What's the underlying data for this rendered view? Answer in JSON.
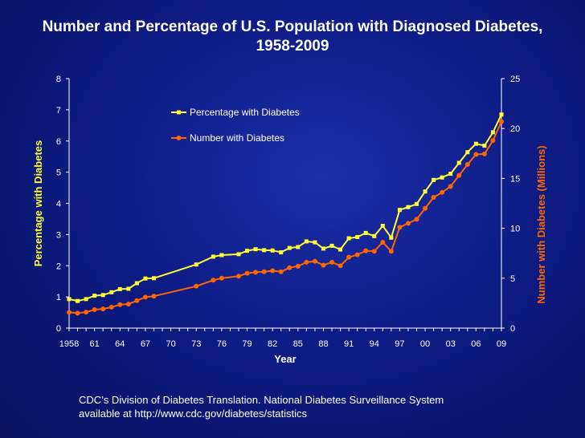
{
  "slide": {
    "title_line1": "Number and Percentage of U.S. Population with Diagnosed Diabetes,",
    "title_line2": "1958-2009",
    "source_line1": "CDC’s Division of Diabetes Translation. National Diabetes Surveillance System",
    "source_line2": "available at http://www.cdc.gov/diabetes/statistics"
  },
  "chart_data": {
    "type": "line",
    "xlabel": "Year",
    "ylabel_left": "Percentage with Diabetes",
    "ylabel_right": "Number with Diabetes (Millions)",
    "x_tick_labels": [
      "1958",
      "61",
      "64",
      "67",
      "70",
      "73",
      "76",
      "79",
      "82",
      "85",
      "88",
      "91",
      "94",
      "97",
      "00",
      "03",
      "06",
      "09"
    ],
    "x_range": [
      1958,
      2009
    ],
    "ylim_left": [
      0,
      8
    ],
    "yticks_left": [
      0,
      1,
      2,
      3,
      4,
      5,
      6,
      7,
      8
    ],
    "ylim_right": [
      0,
      25
    ],
    "yticks_right": [
      0,
      5,
      10,
      15,
      20,
      25
    ],
    "legend_position": "top-left",
    "grid": false,
    "colors": {
      "percentage": "#ffff33",
      "number": "#ff6600",
      "left_axis_label": "#ffff33",
      "right_axis_label": "#ff6600",
      "axis": "#ffffff"
    },
    "series": [
      {
        "name": "Percentage with Diabetes",
        "axis": "left",
        "marker": "square",
        "x": [
          1958,
          1959,
          1960,
          1961,
          1962,
          1963,
          1964,
          1965,
          1966,
          1967,
          1968,
          1973,
          1975,
          1976,
          1978,
          1979,
          1980,
          1981,
          1982,
          1983,
          1984,
          1985,
          1986,
          1987,
          1988,
          1989,
          1990,
          1991,
          1992,
          1993,
          1994,
          1995,
          1996,
          1997,
          1998,
          1999,
          2000,
          2001,
          2002,
          2003,
          2004,
          2005,
          2006,
          2007,
          2008,
          2009
        ],
        "values": [
          0.93,
          0.87,
          0.93,
          1.04,
          1.06,
          1.15,
          1.25,
          1.26,
          1.44,
          1.59,
          1.6,
          2.04,
          2.29,
          2.34,
          2.37,
          2.48,
          2.53,
          2.5,
          2.49,
          2.43,
          2.57,
          2.6,
          2.78,
          2.75,
          2.55,
          2.64,
          2.52,
          2.88,
          2.92,
          3.05,
          2.95,
          3.28,
          2.9,
          3.79,
          3.88,
          3.98,
          4.38,
          4.75,
          4.83,
          4.95,
          5.3,
          5.64,
          5.91,
          5.85,
          6.28,
          6.85
        ]
      },
      {
        "name": "Number with Diabetes",
        "axis": "right",
        "marker": "circle",
        "x": [
          1958,
          1959,
          1960,
          1961,
          1962,
          1963,
          1964,
          1965,
          1966,
          1967,
          1968,
          1973,
          1975,
          1976,
          1978,
          1979,
          1980,
          1981,
          1982,
          1983,
          1984,
          1985,
          1986,
          1987,
          1988,
          1989,
          1990,
          1991,
          1992,
          1993,
          1994,
          1995,
          1996,
          1997,
          1998,
          1999,
          2000,
          2001,
          2002,
          2003,
          2004,
          2005,
          2006,
          2007,
          2008,
          2009
        ],
        "values": [
          1.58,
          1.5,
          1.6,
          1.85,
          1.92,
          2.1,
          2.35,
          2.4,
          2.75,
          3.1,
          3.2,
          4.2,
          4.8,
          5.0,
          5.2,
          5.5,
          5.6,
          5.65,
          5.75,
          5.65,
          6.05,
          6.2,
          6.6,
          6.7,
          6.3,
          6.6,
          6.25,
          7.1,
          7.35,
          7.75,
          7.7,
          8.6,
          7.7,
          10.1,
          10.5,
          10.9,
          12.0,
          13.1,
          13.6,
          14.2,
          15.3,
          16.4,
          17.4,
          17.45,
          18.8,
          20.7
        ]
      }
    ]
  }
}
